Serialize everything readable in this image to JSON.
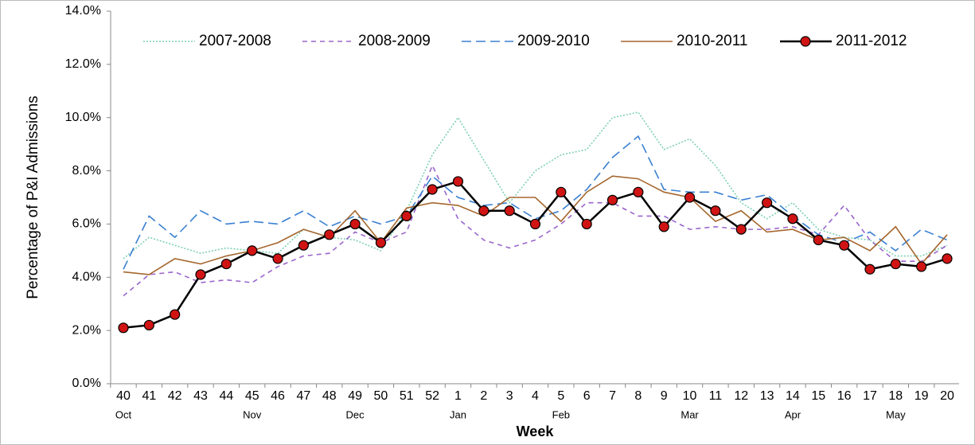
{
  "chart_data": {
    "type": "line",
    "y_label": "Percentage of P&I Admissions",
    "x_label": "Week",
    "categories": [
      "40",
      "41",
      "42",
      "43",
      "44",
      "45",
      "46",
      "47",
      "48",
      "49",
      "50",
      "51",
      "52",
      "1",
      "2",
      "3",
      "4",
      "5",
      "6",
      "7",
      "8",
      "9",
      "10",
      "11",
      "12",
      "13",
      "14",
      "15",
      "16",
      "17",
      "18",
      "19",
      "20"
    ],
    "months": [
      "Oct",
      null,
      null,
      null,
      null,
      "Nov",
      null,
      null,
      null,
      "Dec",
      null,
      null,
      null,
      "Jan",
      null,
      null,
      null,
      "Feb",
      null,
      null,
      null,
      null,
      "Mar",
      null,
      null,
      null,
      "Apr",
      null,
      null,
      null,
      "May",
      null,
      null
    ],
    "ylim": [
      0,
      14
    ],
    "yticks": [
      {
        "value": 0,
        "label": "0.0%"
      },
      {
        "value": 2,
        "label": "2.0%"
      },
      {
        "value": 4,
        "label": "4.0%"
      },
      {
        "value": 6,
        "label": "6.0%"
      },
      {
        "value": 8,
        "label": "8.0%"
      },
      {
        "value": 10,
        "label": "10.0%"
      },
      {
        "value": 12,
        "label": "12.0%"
      },
      {
        "value": 14,
        "label": "14.0%"
      }
    ],
    "legend": "top",
    "series": [
      {
        "name": "2007-2008",
        "color": "#7fd0b4",
        "dash": "dotted",
        "values": [
          4.7,
          5.5,
          5.2,
          4.9,
          5.1,
          5.0,
          4.9,
          5.8,
          5.5,
          5.4,
          5.0,
          6.5,
          8.6,
          10.0,
          8.4,
          6.8,
          8.0,
          8.6,
          8.8,
          10.0,
          10.2,
          8.8,
          9.2,
          8.2,
          6.8,
          6.2,
          6.8,
          5.8,
          5.5,
          5.4,
          4.8,
          4.8,
          5.2
        ]
      },
      {
        "name": "2008-2009",
        "color": "#9a66cc",
        "dash": "short",
        "values": [
          3.3,
          4.1,
          4.2,
          3.8,
          3.9,
          3.8,
          4.4,
          4.8,
          4.9,
          5.7,
          5.3,
          5.7,
          8.2,
          6.2,
          5.4,
          5.1,
          5.4,
          6.0,
          6.8,
          6.8,
          6.3,
          6.3,
          5.8,
          5.9,
          5.8,
          5.8,
          5.9,
          5.6,
          6.7,
          5.4,
          4.6,
          4.6,
          5.2
        ]
      },
      {
        "name": "2009-2010",
        "color": "#3a80d2",
        "dash": "long",
        "values": [
          4.3,
          6.3,
          5.5,
          6.5,
          6.0,
          6.1,
          6.0,
          6.5,
          5.9,
          6.3,
          6.0,
          6.3,
          7.8,
          7.0,
          6.7,
          6.8,
          6.2,
          6.5,
          7.3,
          8.5,
          9.3,
          7.3,
          7.2,
          7.2,
          6.9,
          7.1,
          6.3,
          5.6,
          5.3,
          5.7,
          5.0,
          5.8,
          5.4
        ]
      },
      {
        "name": "2010-2011",
        "color": "#a5672e",
        "dash": "solid",
        "values": [
          4.2,
          4.1,
          4.7,
          4.5,
          4.8,
          5.0,
          5.3,
          5.8,
          5.5,
          6.5,
          5.3,
          6.6,
          6.8,
          6.7,
          6.3,
          7.0,
          7.0,
          6.1,
          7.2,
          7.8,
          7.7,
          7.2,
          7.0,
          6.1,
          6.5,
          5.7,
          5.8,
          5.4,
          5.5,
          5.0,
          5.9,
          4.5,
          5.6
        ]
      },
      {
        "name": "2011-2012",
        "color": "#000000",
        "marker_color": "#d01414",
        "dash": "solid",
        "marker": true,
        "values": [
          2.1,
          2.2,
          2.6,
          4.1,
          4.5,
          5.0,
          4.7,
          5.2,
          5.6,
          6.0,
          5.3,
          6.3,
          7.3,
          7.6,
          6.5,
          6.5,
          6.0,
          7.2,
          6.0,
          6.9,
          7.2,
          5.9,
          7.0,
          6.5,
          5.8,
          6.8,
          6.2,
          5.4,
          5.2,
          4.3,
          4.5,
          4.4,
          4.7
        ]
      }
    ]
  }
}
